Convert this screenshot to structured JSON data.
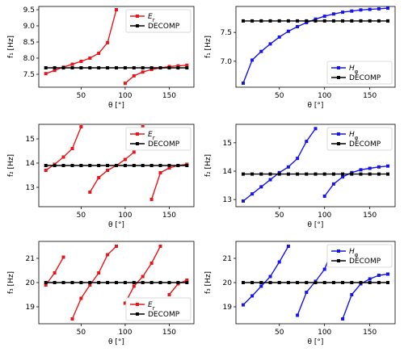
{
  "colors": {
    "red": "#e8151b",
    "blue": "#1414f0",
    "black": "#000000"
  },
  "chart_data": [
    {
      "type": "line",
      "xlabel": "θ [°]",
      "ylabel": "f₁ [Hz]",
      "xlim": [
        2,
        178
      ],
      "ylim": [
        7.1,
        9.6
      ],
      "xticks": [
        50,
        100,
        150
      ],
      "yticks": [
        7.5,
        8.0,
        8.5,
        9.0,
        9.5
      ],
      "legend_position": "top-right",
      "series": [
        {
          "name": "E_r",
          "color": "red",
          "segments": [
            {
              "x": [
                10,
                20,
                30,
                40,
                50,
                60,
                70,
                80,
                90
              ],
              "y": [
                7.52,
                7.62,
                7.72,
                7.81,
                7.9,
                8.0,
                8.15,
                8.48,
                9.5
              ]
            },
            {
              "x": [
                100,
                110,
                120,
                130,
                140,
                150,
                160,
                170
              ],
              "y": [
                7.22,
                7.45,
                7.57,
                7.65,
                7.7,
                7.74,
                7.76,
                7.78
              ]
            }
          ]
        },
        {
          "name": "DECOMP",
          "color": "black",
          "segments": [
            {
              "x": [
                10,
                20,
                30,
                40,
                50,
                60,
                70,
                80,
                90,
                100,
                110,
                120,
                130,
                140,
                150,
                160,
                170
              ],
              "y": [
                7.7,
                7.7,
                7.7,
                7.7,
                7.7,
                7.7,
                7.7,
                7.7,
                7.7,
                7.7,
                7.7,
                7.7,
                7.7,
                7.7,
                7.7,
                7.7,
                7.7
              ]
            }
          ]
        }
      ]
    },
    {
      "type": "line",
      "xlabel": "θ [°]",
      "ylabel": "f₁ [Hz]",
      "xlim": [
        2,
        178
      ],
      "ylim": [
        6.55,
        7.95
      ],
      "xticks": [
        50,
        100,
        150
      ],
      "yticks": [
        7.0,
        7.5
      ],
      "legend_position": "bottom-right",
      "series": [
        {
          "name": "H_φ",
          "color": "blue",
          "segments": [
            {
              "x": [
                10,
                20,
                30,
                40,
                50,
                60,
                70,
                80,
                90,
                100,
                110,
                120,
                130,
                140,
                150,
                160,
                170
              ],
              "y": [
                6.62,
                7.02,
                7.17,
                7.3,
                7.42,
                7.52,
                7.6,
                7.67,
                7.73,
                7.78,
                7.82,
                7.85,
                7.87,
                7.89,
                7.9,
                7.91,
                7.92
              ]
            }
          ]
        },
        {
          "name": "DECOMP",
          "color": "black",
          "segments": [
            {
              "x": [
                10,
                20,
                30,
                40,
                50,
                60,
                70,
                80,
                90,
                100,
                110,
                120,
                130,
                140,
                150,
                160,
                170
              ],
              "y": [
                7.7,
                7.7,
                7.7,
                7.7,
                7.7,
                7.7,
                7.7,
                7.7,
                7.7,
                7.7,
                7.7,
                7.7,
                7.7,
                7.7,
                7.7,
                7.7,
                7.7
              ]
            }
          ]
        }
      ]
    },
    {
      "type": "line",
      "xlabel": "θ [°]",
      "ylabel": "f₂ [Hz]",
      "xlim": [
        2,
        178
      ],
      "ylim": [
        12.2,
        15.6
      ],
      "xticks": [
        50,
        100,
        150
      ],
      "yticks": [
        13,
        14,
        15
      ],
      "legend_position": "top-right",
      "series": [
        {
          "name": "E_r",
          "color": "red",
          "segments": [
            {
              "x": [
                10,
                20,
                30,
                40,
                50
              ],
              "y": [
                13.7,
                13.95,
                14.25,
                14.6,
                15.5
              ]
            },
            {
              "x": [
                60,
                70,
                80,
                90,
                100,
                110,
                120
              ],
              "y": [
                12.8,
                13.4,
                13.7,
                13.9,
                14.15,
                14.45,
                15.5
              ]
            },
            {
              "x": [
                130,
                140,
                150,
                160,
                170
              ],
              "y": [
                12.5,
                13.6,
                13.8,
                13.9,
                13.95
              ]
            }
          ]
        },
        {
          "name": "DECOMP",
          "color": "black",
          "segments": [
            {
              "x": [
                10,
                20,
                30,
                40,
                50,
                60,
                70,
                80,
                90,
                100,
                110,
                120,
                130,
                140,
                150,
                160,
                170
              ],
              "y": [
                13.9,
                13.9,
                13.9,
                13.9,
                13.9,
                13.9,
                13.9,
                13.9,
                13.9,
                13.9,
                13.9,
                13.9,
                13.9,
                13.9,
                13.9,
                13.9,
                13.9
              ]
            }
          ]
        }
      ]
    },
    {
      "type": "line",
      "xlabel": "θ [°]",
      "ylabel": "f₂ [Hz]",
      "xlim": [
        2,
        178
      ],
      "ylim": [
        12.75,
        15.65
      ],
      "xticks": [
        50,
        100,
        150
      ],
      "yticks": [
        13,
        14,
        15
      ],
      "legend_position": "top-right",
      "series": [
        {
          "name": "H_φ",
          "color": "blue",
          "segments": [
            {
              "x": [
                10,
                20,
                30,
                40,
                50,
                60,
                70,
                80,
                90
              ],
              "y": [
                12.95,
                13.2,
                13.45,
                13.7,
                13.95,
                14.15,
                14.45,
                15.05,
                15.5
              ]
            },
            {
              "x": [
                100,
                110,
                120,
                130,
                140,
                150,
                160,
                170
              ],
              "y": [
                13.12,
                13.55,
                13.8,
                13.95,
                14.05,
                14.1,
                14.15,
                14.18
              ]
            }
          ]
        },
        {
          "name": "DECOMP",
          "color": "black",
          "segments": [
            {
              "x": [
                10,
                20,
                30,
                40,
                50,
                60,
                70,
                80,
                90,
                100,
                110,
                120,
                130,
                140,
                150,
                160,
                170
              ],
              "y": [
                13.9,
                13.9,
                13.9,
                13.9,
                13.9,
                13.9,
                13.9,
                13.9,
                13.9,
                13.9,
                13.9,
                13.9,
                13.9,
                13.9,
                13.9,
                13.9,
                13.9
              ]
            }
          ]
        }
      ]
    },
    {
      "type": "line",
      "xlabel": "θ [°]",
      "ylabel": "f₃ [Hz]",
      "xlim": [
        2,
        178
      ],
      "ylim": [
        18.3,
        21.7
      ],
      "xticks": [
        50,
        100,
        150
      ],
      "yticks": [
        19,
        20,
        21
      ],
      "legend_position": "bottom-right",
      "series": [
        {
          "name": "E_r",
          "color": "red",
          "segments": [
            {
              "x": [
                10,
                20,
                30
              ],
              "y": [
                19.9,
                20.4,
                21.05
              ]
            },
            {
              "x": [
                40,
                50,
                60,
                70,
                80,
                90
              ],
              "y": [
                18.5,
                19.35,
                19.9,
                20.4,
                21.15,
                21.5
              ]
            },
            {
              "x": [
                100,
                110,
                120,
                130,
                140
              ],
              "y": [
                19.15,
                19.85,
                20.25,
                20.8,
                21.5
              ]
            },
            {
              "x": [
                150,
                160,
                170
              ],
              "y": [
                19.5,
                19.95,
                20.1
              ]
            }
          ]
        },
        {
          "name": "DECOMP",
          "color": "black",
          "segments": [
            {
              "x": [
                10,
                20,
                30,
                40,
                50,
                60,
                70,
                80,
                90,
                100,
                110,
                120,
                130,
                140,
                150,
                160,
                170
              ],
              "y": [
                20.0,
                20.0,
                20.0,
                20.0,
                20.0,
                20.0,
                20.0,
                20.0,
                20.0,
                20.0,
                20.0,
                20.0,
                20.0,
                20.0,
                20.0,
                20.0,
                20.0
              ]
            }
          ]
        }
      ]
    },
    {
      "type": "line",
      "xlabel": "θ [°]",
      "ylabel": "f₃ [Hz]",
      "xlim": [
        2,
        178
      ],
      "ylim": [
        18.3,
        21.7
      ],
      "xticks": [
        50,
        100,
        150
      ],
      "yticks": [
        19,
        20,
        21
      ],
      "legend_position": "top-right",
      "series": [
        {
          "name": "H_φ",
          "color": "blue",
          "segments": [
            {
              "x": [
                10,
                20,
                30,
                40,
                50,
                60
              ],
              "y": [
                19.08,
                19.45,
                19.85,
                20.25,
                20.85,
                21.5
              ]
            },
            {
              "x": [
                70,
                80,
                90,
                100,
                110
              ],
              "y": [
                18.65,
                19.6,
                20.05,
                20.55,
                21.5
              ]
            },
            {
              "x": [
                120,
                130,
                140,
                150,
                160,
                170
              ],
              "y": [
                18.5,
                19.5,
                19.95,
                20.15,
                20.3,
                20.35
              ]
            }
          ]
        },
        {
          "name": "DECOMP",
          "color": "black",
          "segments": [
            {
              "x": [
                10,
                20,
                30,
                40,
                50,
                60,
                70,
                80,
                90,
                100,
                110,
                120,
                130,
                140,
                150,
                160,
                170
              ],
              "y": [
                20.0,
                20.0,
                20.0,
                20.0,
                20.0,
                20.0,
                20.0,
                20.0,
                20.0,
                20.0,
                20.0,
                20.0,
                20.0,
                20.0,
                20.0,
                20.0,
                20.0
              ]
            }
          ]
        }
      ]
    }
  ]
}
